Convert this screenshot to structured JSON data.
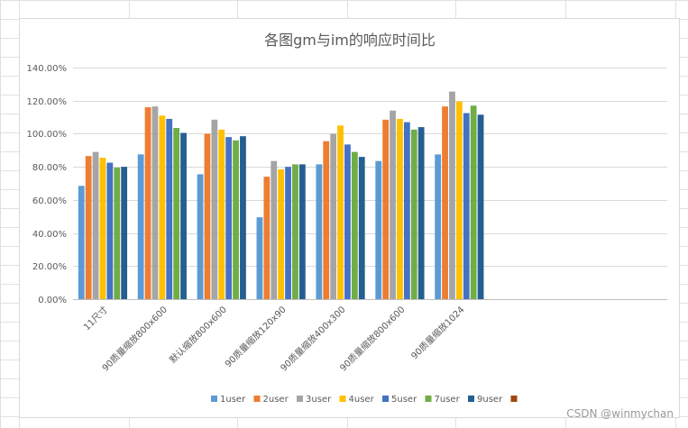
{
  "watermark": "CSDN @winmychan",
  "chart_data": {
    "type": "bar",
    "title": "各图gm与im的响应时间比",
    "categories": [
      "11尺寸",
      "90质量缩放800x600",
      "默认缩放800x600",
      "90质量缩放120x90",
      "90质量缩放400x300",
      "90质量缩放800x600",
      "90质量缩放1024"
    ],
    "series": [
      {
        "name": "1user",
        "color": "#5b9bd5",
        "values": [
          68.5,
          87.5,
          75.5,
          49.5,
          81.5,
          83.5,
          87.5
        ]
      },
      {
        "name": "2user",
        "color": "#ed7d31",
        "values": [
          86.5,
          116.0,
          100.0,
          74.0,
          95.5,
          108.5,
          116.5
        ]
      },
      {
        "name": "3user",
        "color": "#a5a5a5",
        "values": [
          89.0,
          116.5,
          108.5,
          83.5,
          100.0,
          114.0,
          125.5
        ]
      },
      {
        "name": "4user",
        "color": "#ffc000",
        "values": [
          85.5,
          111.0,
          102.5,
          78.5,
          105.0,
          109.0,
          119.5
        ]
      },
      {
        "name": "5user",
        "color": "#4472c4",
        "values": [
          82.5,
          109.0,
          98.0,
          80.0,
          93.5,
          107.0,
          112.5
        ]
      },
      {
        "name": "7user",
        "color": "#70ad47",
        "values": [
          79.5,
          103.5,
          96.0,
          81.5,
          89.0,
          102.5,
          117.0
        ]
      },
      {
        "name": "9user",
        "color": "#255e91",
        "values": [
          80.0,
          100.5,
          98.5,
          81.5,
          86.0,
          104.0,
          111.5
        ]
      }
    ],
    "legend_extra_color": "#9e480e",
    "yticks": [
      "0.00%",
      "20.00%",
      "40.00%",
      "60.00%",
      "80.00%",
      "100.00%",
      "120.00%",
      "140.00%"
    ],
    "ylim": [
      0,
      140
    ],
    "grid": true,
    "legend_position": "bottom",
    "colors": {
      "grid": "#d9d9d9",
      "axis": "#bfbfbf",
      "text": "#595959"
    }
  }
}
